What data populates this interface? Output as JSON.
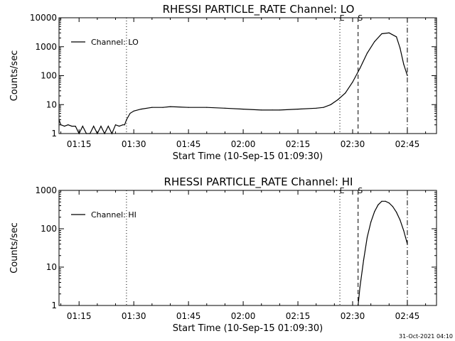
{
  "footer": {
    "timestamp": "31-Oct-2021 04:10"
  },
  "chart_data": [
    {
      "type": "line",
      "title": "RHESSI PARTICLE_RATE Channel: LO",
      "xlabel": "Start Time (10-Sep-15 01:09:30)",
      "ylabel": "Counts/sec",
      "yscale": "log",
      "ylim": [
        1,
        10000
      ],
      "xlim": [
        "01:09:30",
        "02:53:00"
      ],
      "xticks": [
        "01:15",
        "01:30",
        "01:45",
        "02:00",
        "02:15",
        "02:30",
        "02:45"
      ],
      "yticks": [
        "1",
        "10",
        "100",
        "1000",
        "10000"
      ],
      "legend": "top-left",
      "series": [
        {
          "name": "Channel: LO",
          "x": [
            "01:09:30",
            "01:10:00",
            "01:11:00",
            "01:12:00",
            "01:13:00",
            "01:14:00",
            "01:15:00",
            "01:16:00",
            "01:17:00",
            "01:18:00",
            "01:19:00",
            "01:20:00",
            "01:21:00",
            "01:22:00",
            "01:23:00",
            "01:24:00",
            "01:25:00",
            "01:26:00",
            "01:27:00",
            "01:27:30",
            "01:28:00",
            "01:29:00",
            "01:30:00",
            "01:32:00",
            "01:35:00",
            "01:38:00",
            "01:40:00",
            "01:45:00",
            "01:50:00",
            "01:55:00",
            "02:00:00",
            "02:05:00",
            "02:08:00",
            "02:10:00",
            "02:15:00",
            "02:20:00",
            "02:22:00",
            "02:24:00",
            "02:26:00",
            "02:28:00",
            "02:30:00",
            "02:32:00",
            "02:34:00",
            "02:36:00",
            "02:38:00",
            "02:40:00",
            "02:42:00",
            "02:43:00",
            "02:44:00",
            "02:45:00"
          ],
          "y": [
            3,
            2,
            1.8,
            2,
            1.8,
            1.8,
            1,
            1.8,
            1,
            1,
            1.8,
            1,
            1.8,
            1,
            1.8,
            1,
            2,
            1.8,
            2,
            2,
            3,
            5,
            6,
            7,
            8,
            8,
            8.5,
            8,
            8,
            7.5,
            7,
            6.5,
            6.5,
            6.5,
            7,
            7.5,
            8,
            10,
            15,
            25,
            60,
            180,
            600,
            1500,
            2800,
            3000,
            2200,
            900,
            250,
            100
          ]
        }
      ],
      "annotations": [
        {
          "label": "",
          "x": "01:28:00",
          "style": "dotted"
        },
        {
          "label": "E",
          "x": "02:26:30",
          "style": "dotted"
        },
        {
          "label": "S",
          "x": "02:31:30",
          "style": "dashed"
        },
        {
          "label": "",
          "x": "02:45:00",
          "style": "dash-dot"
        }
      ]
    },
    {
      "type": "line",
      "title": "RHESSI PARTICLE_RATE Channel: HI",
      "xlabel": "Start Time (10-Sep-15 01:09:30)",
      "ylabel": "Counts/sec",
      "yscale": "log",
      "ylim": [
        1,
        1000
      ],
      "xlim": [
        "01:09:30",
        "02:53:00"
      ],
      "xticks": [
        "01:15",
        "01:30",
        "01:45",
        "02:00",
        "02:15",
        "02:30",
        "02:45"
      ],
      "yticks": [
        "1",
        "10",
        "100",
        "1000"
      ],
      "legend": "top-left",
      "series": [
        {
          "name": "Channel: HI",
          "x": [
            "02:31:30",
            "02:32:00",
            "02:33:00",
            "02:34:00",
            "02:35:00",
            "02:36:00",
            "02:37:00",
            "02:38:00",
            "02:39:00",
            "02:40:00",
            "02:41:00",
            "02:42:00",
            "02:43:00",
            "02:44:00",
            "02:44:30",
            "02:45:00"
          ],
          "y": [
            1,
            3,
            15,
            60,
            150,
            280,
            420,
            520,
            520,
            470,
            380,
            270,
            170,
            90,
            60,
            40
          ]
        }
      ],
      "annotations": [
        {
          "label": "",
          "x": "01:28:00",
          "style": "dotted"
        },
        {
          "label": "E",
          "x": "02:26:30",
          "style": "dotted"
        },
        {
          "label": "S",
          "x": "02:31:30",
          "style": "dashed"
        },
        {
          "label": "",
          "x": "02:45:00",
          "style": "dash-dot"
        }
      ]
    }
  ]
}
